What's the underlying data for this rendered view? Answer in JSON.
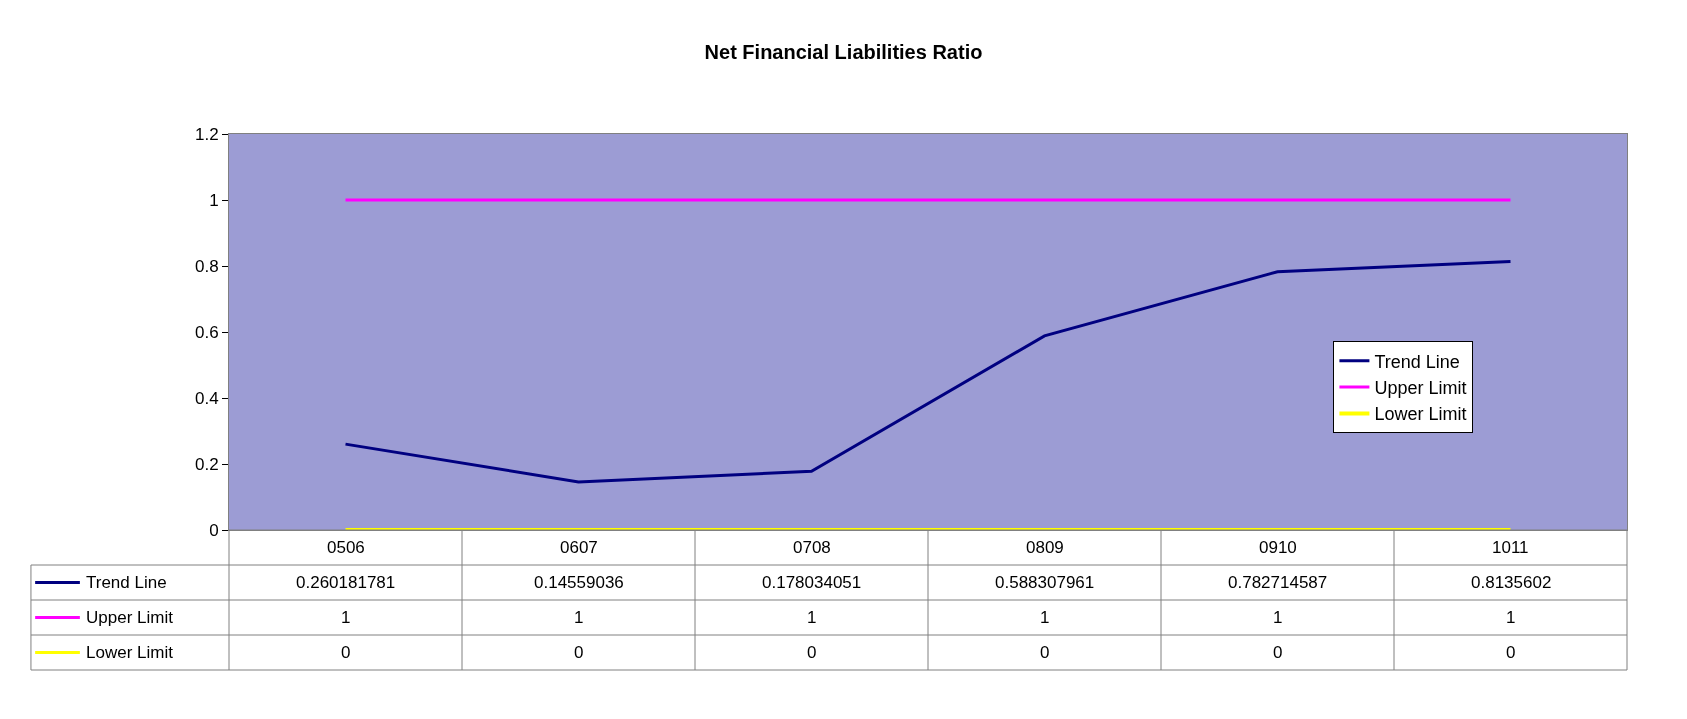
{
  "chart_data": {
    "type": "line",
    "title": "Net Financial Liabilities Ratio",
    "categories": [
      "0506",
      "0607",
      "0708",
      "0809",
      "0910",
      "1011"
    ],
    "series": [
      {
        "name": "Trend Line",
        "color": "#000080",
        "values": [
          0.260181781,
          0.14559036,
          0.178034051,
          0.588307961,
          0.782714587,
          0.8135602
        ]
      },
      {
        "name": "Upper Limit",
        "color": "#ff00ff",
        "values": [
          1,
          1,
          1,
          1,
          1,
          1
        ]
      },
      {
        "name": "Lower Limit",
        "color": "#ffff00",
        "values": [
          0,
          0,
          0,
          0,
          0,
          0
        ]
      }
    ],
    "ylim": [
      0,
      1.2
    ],
    "yticks": [
      0,
      0.2,
      0.4,
      0.6,
      0.8,
      1,
      1.2
    ],
    "grid": false,
    "legend": "right",
    "marker": "none",
    "line_style": "solid",
    "data_labels": true
  }
}
